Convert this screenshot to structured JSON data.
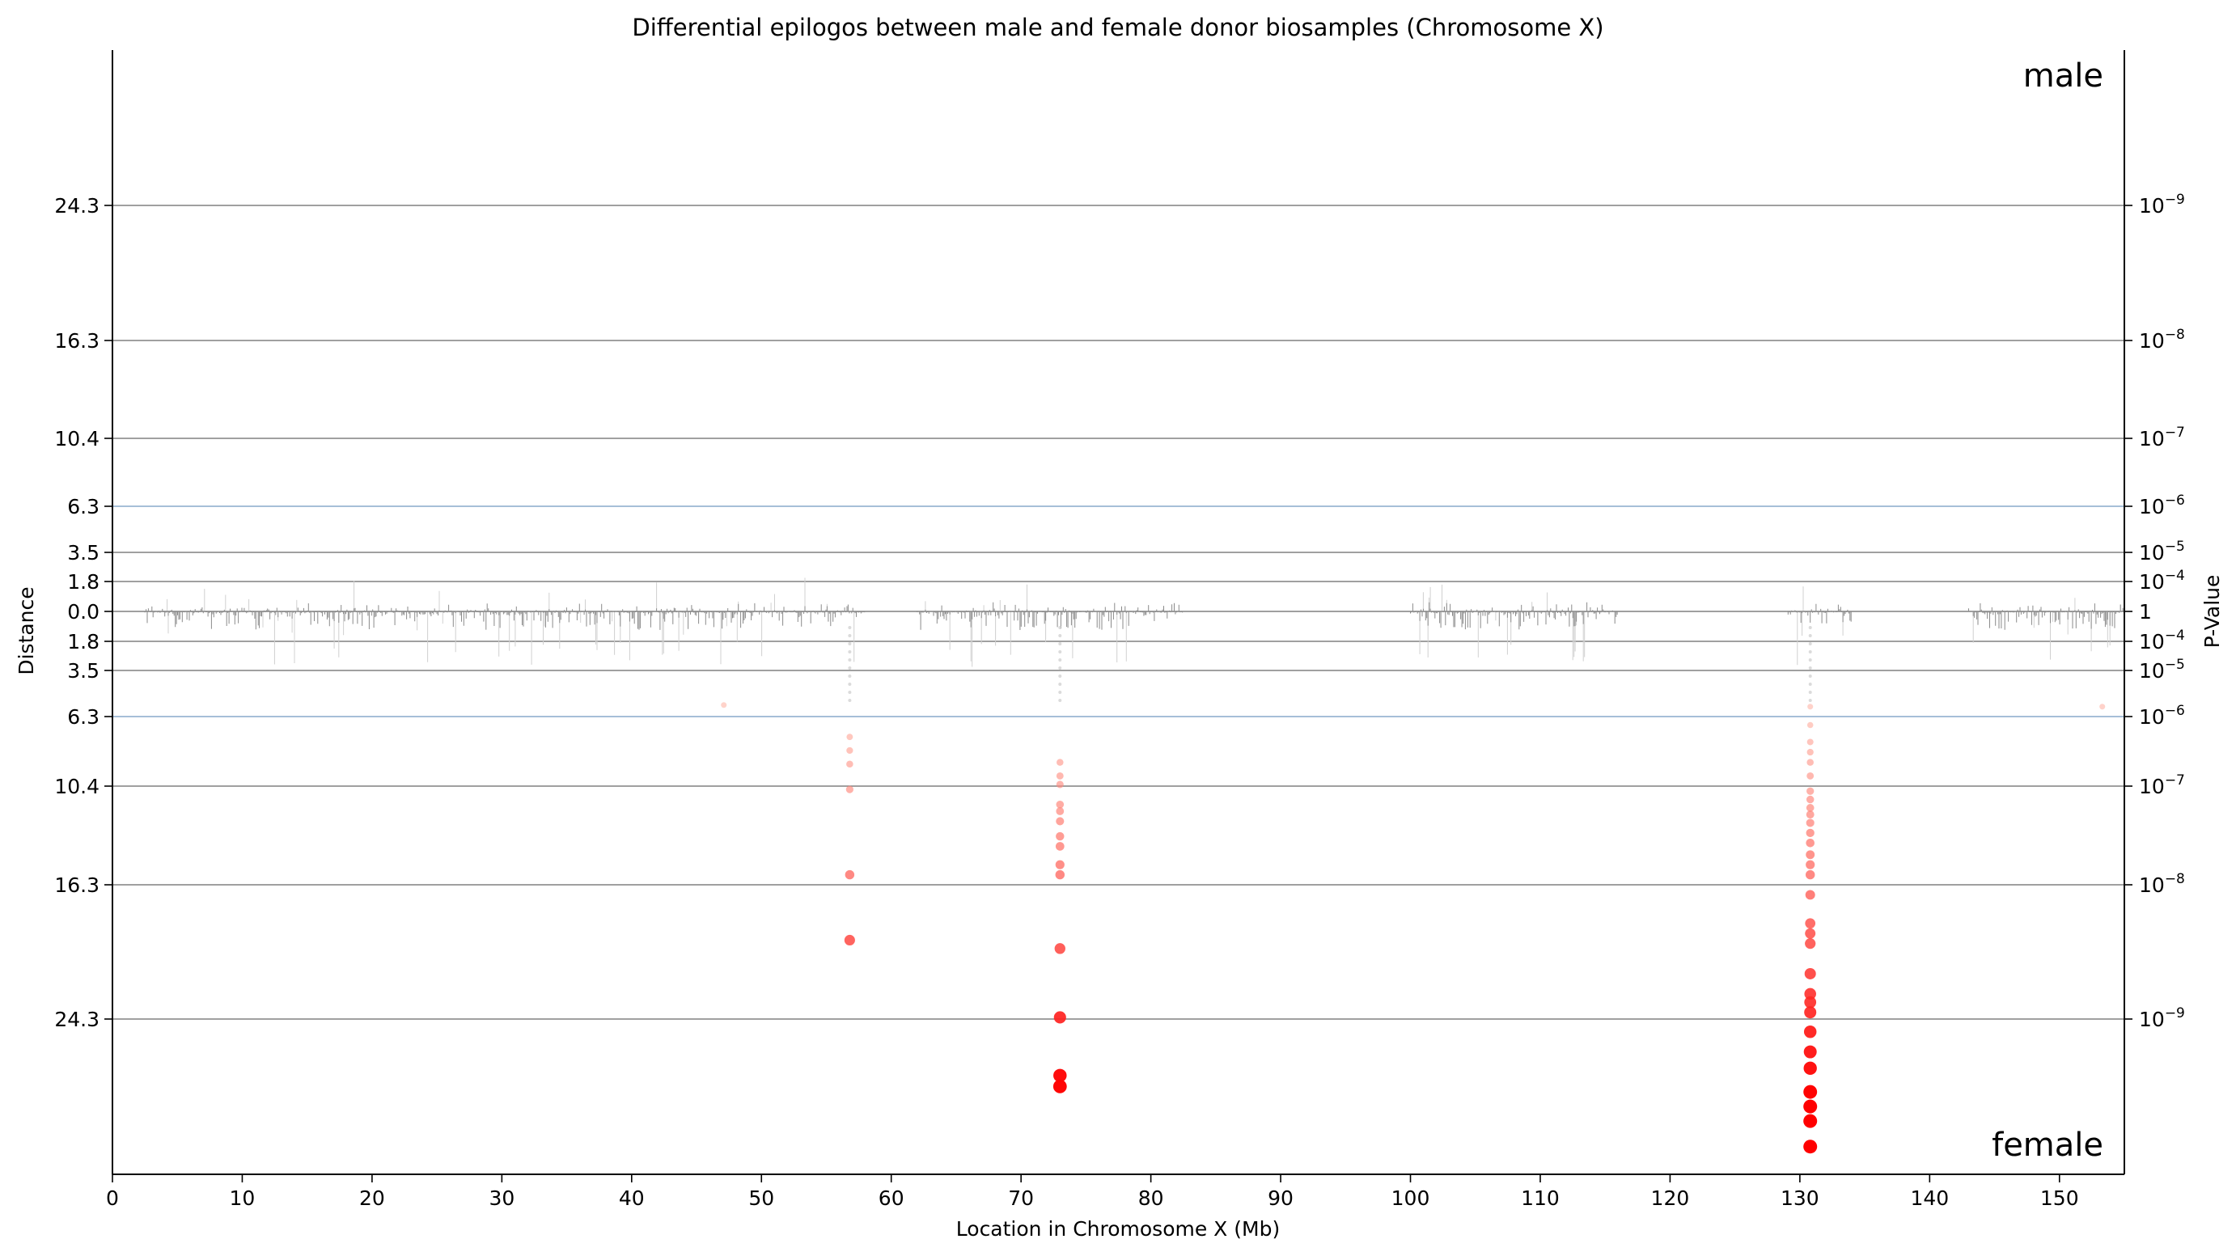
{
  "chart_data": {
    "type": "scatter",
    "title": "Differential epilogos between male and female donor biosamples (Chromosome X)",
    "xlabel": "Location in Chromosome X (Mb)",
    "ylabel": "Distance",
    "ylabel_right": "P-Value",
    "xlim": [
      0,
      155
    ],
    "x_ticks": [
      0,
      10,
      20,
      30,
      40,
      50,
      60,
      70,
      80,
      90,
      100,
      110,
      120,
      130,
      140,
      150
    ],
    "corner_labels": {
      "top": "male",
      "bottom": "female"
    },
    "y_lines": [
      {
        "distance": 24.3,
        "label": "24.3",
        "pvalue_base": "10",
        "pvalue_exp": "−9",
        "side": "male",
        "color": "#808080"
      },
      {
        "distance": 16.3,
        "label": "16.3",
        "pvalue_base": "10",
        "pvalue_exp": "−8",
        "side": "male",
        "color": "#808080"
      },
      {
        "distance": 10.4,
        "label": "10.4",
        "pvalue_base": "10",
        "pvalue_exp": "−7",
        "side": "male",
        "color": "#808080"
      },
      {
        "distance": 6.3,
        "label": "6.3",
        "pvalue_base": "10",
        "pvalue_exp": "−6",
        "side": "male",
        "color": "#88aacc"
      },
      {
        "distance": 3.5,
        "label": "3.5",
        "pvalue_base": "10",
        "pvalue_exp": "−5",
        "side": "male",
        "color": "#808080"
      },
      {
        "distance": 1.8,
        "label": "1.8",
        "pvalue_base": "10",
        "pvalue_exp": "−4",
        "side": "male",
        "color": "#808080"
      },
      {
        "distance": 0.0,
        "label": "0.0",
        "pvalue_base": "1",
        "pvalue_exp": "",
        "side": "center",
        "color": "#808080"
      },
      {
        "distance": 1.8,
        "label": "1.8",
        "pvalue_base": "10",
        "pvalue_exp": "−4",
        "side": "female",
        "color": "#808080"
      },
      {
        "distance": 3.5,
        "label": "3.5",
        "pvalue_base": "10",
        "pvalue_exp": "−5",
        "side": "female",
        "color": "#808080"
      },
      {
        "distance": 6.3,
        "label": "6.3",
        "pvalue_base": "10",
        "pvalue_exp": "−6",
        "side": "female",
        "color": "#88aacc"
      },
      {
        "distance": 10.4,
        "label": "10.4",
        "pvalue_base": "10",
        "pvalue_exp": "−7",
        "side": "female",
        "color": "#808080"
      },
      {
        "distance": 16.3,
        "label": "16.3",
        "pvalue_base": "10",
        "pvalue_exp": "−8",
        "side": "female",
        "color": "#808080"
      },
      {
        "distance": 24.3,
        "label": "24.3",
        "pvalue_base": "10",
        "pvalue_exp": "−9",
        "side": "female",
        "color": "#808080"
      }
    ],
    "background_noise_mb": [
      [
        2.5,
        58
      ],
      [
        62,
        82.5
      ],
      [
        100,
        116
      ],
      [
        129,
        134
      ],
      [
        143,
        155
      ]
    ],
    "significant_points": [
      {
        "x": 47.1,
        "distance": 5.6
      },
      {
        "x": 56.8,
        "distance": 7.5
      },
      {
        "x": 56.8,
        "distance": 8.3
      },
      {
        "x": 56.8,
        "distance": 9.1
      },
      {
        "x": 56.8,
        "distance": 10.6
      },
      {
        "x": 56.8,
        "distance": 15.7
      },
      {
        "x": 56.8,
        "distance": 19.6
      },
      {
        "x": 73.0,
        "distance": 9.0
      },
      {
        "x": 73.0,
        "distance": 9.8
      },
      {
        "x": 73.0,
        "distance": 10.3
      },
      {
        "x": 73.0,
        "distance": 11.5
      },
      {
        "x": 73.0,
        "distance": 11.9
      },
      {
        "x": 73.0,
        "distance": 12.5
      },
      {
        "x": 73.0,
        "distance": 13.4
      },
      {
        "x": 73.0,
        "distance": 14.0
      },
      {
        "x": 73.0,
        "distance": 15.1
      },
      {
        "x": 73.0,
        "distance": 15.7
      },
      {
        "x": 73.0,
        "distance": 20.1
      },
      {
        "x": 73.0,
        "distance": 24.2
      },
      {
        "x": 73.0,
        "distance": 27.4
      },
      {
        "x": 73.0,
        "distance": 28.0
      },
      {
        "x": 130.8,
        "distance": 5.7
      },
      {
        "x": 130.8,
        "distance": 6.8
      },
      {
        "x": 130.8,
        "distance": 7.8
      },
      {
        "x": 130.8,
        "distance": 8.4
      },
      {
        "x": 130.8,
        "distance": 9.0
      },
      {
        "x": 130.8,
        "distance": 9.8
      },
      {
        "x": 130.8,
        "distance": 10.7
      },
      {
        "x": 130.8,
        "distance": 11.2
      },
      {
        "x": 130.8,
        "distance": 11.7
      },
      {
        "x": 130.8,
        "distance": 12.1
      },
      {
        "x": 130.8,
        "distance": 12.6
      },
      {
        "x": 130.8,
        "distance": 13.2
      },
      {
        "x": 130.8,
        "distance": 13.8
      },
      {
        "x": 130.8,
        "distance": 14.5
      },
      {
        "x": 130.8,
        "distance": 15.1
      },
      {
        "x": 130.8,
        "distance": 15.7
      },
      {
        "x": 130.8,
        "distance": 16.9
      },
      {
        "x": 130.8,
        "distance": 18.6
      },
      {
        "x": 130.8,
        "distance": 19.2
      },
      {
        "x": 130.8,
        "distance": 19.8
      },
      {
        "x": 130.8,
        "distance": 21.6
      },
      {
        "x": 130.8,
        "distance": 22.8
      },
      {
        "x": 130.8,
        "distance": 23.3
      },
      {
        "x": 130.8,
        "distance": 23.9
      },
      {
        "x": 130.8,
        "distance": 25.0
      },
      {
        "x": 130.8,
        "distance": 26.1
      },
      {
        "x": 130.8,
        "distance": 27.0
      },
      {
        "x": 130.8,
        "distance": 28.3
      },
      {
        "x": 130.8,
        "distance": 29.1
      },
      {
        "x": 130.8,
        "distance": 29.9
      },
      {
        "x": 130.8,
        "distance": 31.3
      },
      {
        "x": 153.3,
        "distance": 5.7
      }
    ],
    "point_color_low": "#ffb0a0",
    "point_color_high": "#ff0000",
    "grid": true
  }
}
